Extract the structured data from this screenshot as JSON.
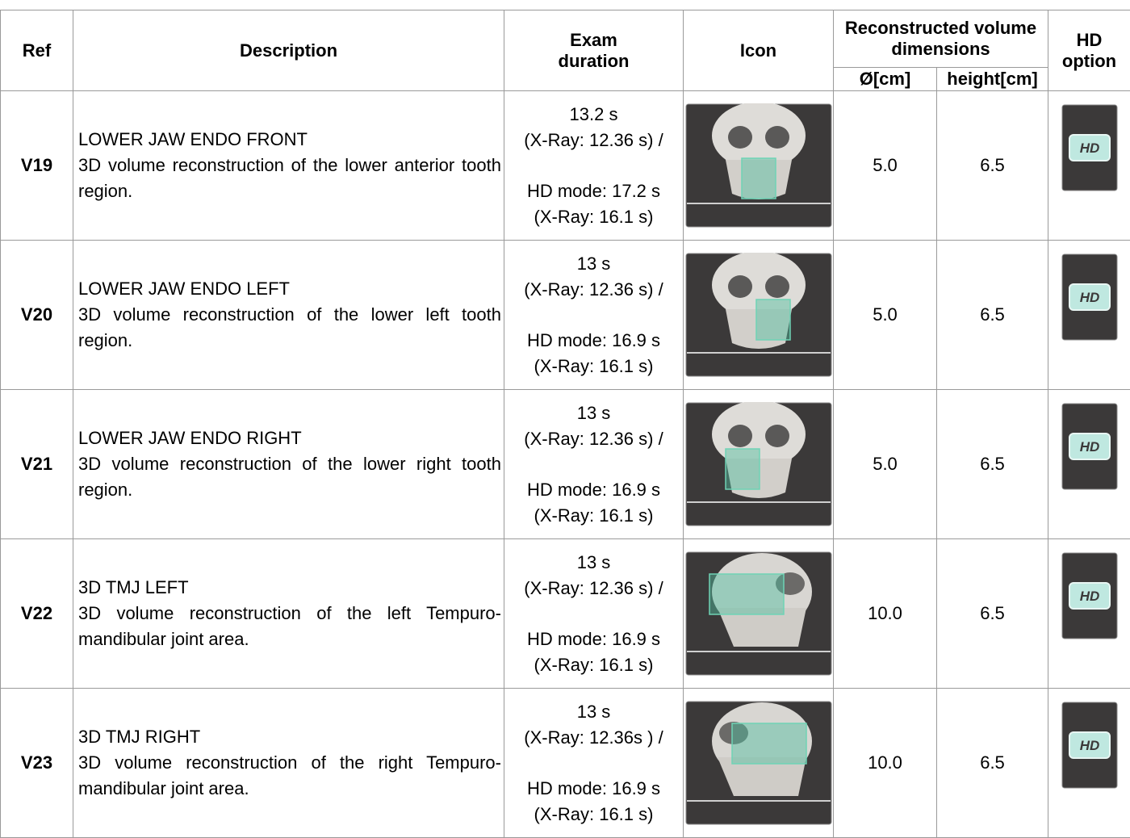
{
  "table": {
    "header": {
      "ref": "Ref",
      "description": "Description",
      "exam_duration": "Exam duration",
      "icon": "Icon",
      "volume": "Reconstructed volume dimensions",
      "diameter": "Ø[cm]",
      "height": "height[cm]",
      "hd_option": "HD option"
    },
    "rows": [
      {
        "ref": "V19",
        "name": "LOWER JAW ENDO FRONT",
        "description": "3D volume reconstruction of the lower anterior tooth region.",
        "duration": [
          "13.2 s",
          "(X-Ray: 12.36 s) /",
          "HD mode: 17.2 s",
          "(X-Ray: 16.1 s)"
        ],
        "diameter": "5.0",
        "height": "6.5",
        "hd": "HD"
      },
      {
        "ref": "V20",
        "name": "LOWER JAW ENDO LEFT",
        "description": "3D volume reconstruction of the lower left tooth region.",
        "duration": [
          "13 s",
          "(X-Ray: 12.36 s) /",
          "HD mode: 16.9 s",
          "(X-Ray: 16.1 s)"
        ],
        "diameter": "5.0",
        "height": "6.5",
        "hd": "HD"
      },
      {
        "ref": "V21",
        "name": "LOWER JAW ENDO RIGHT",
        "description": "3D volume reconstruction of the lower right tooth region.",
        "duration": [
          "13 s",
          "(X-Ray: 12.36 s) /",
          "HD mode: 16.9 s",
          "(X-Ray: 16.1 s)"
        ],
        "diameter": "5.0",
        "height": "6.5",
        "hd": "HD"
      },
      {
        "ref": "V22",
        "name": "3D TMJ LEFT",
        "description": "3D volume reconstruction of the left Tempuro-mandibular joint area.",
        "duration": [
          "13 s",
          "(X-Ray: 12.36 s) /",
          "HD mode: 16.9 s",
          "(X-Ray: 16.1 s)"
        ],
        "diameter": "10.0",
        "height": "6.5",
        "hd": "HD"
      },
      {
        "ref": "V23",
        "name": "3D TMJ RIGHT",
        "description": "3D volume reconstruction of the right Tempuro-mandibular joint area.",
        "duration": [
          "13 s",
          "(X-Ray: 12.36s ) /",
          "HD mode: 16.9 s",
          "(X-Ray: 16.1 s)"
        ],
        "diameter": "10.0",
        "height": "6.5",
        "hd": "HD"
      }
    ]
  }
}
